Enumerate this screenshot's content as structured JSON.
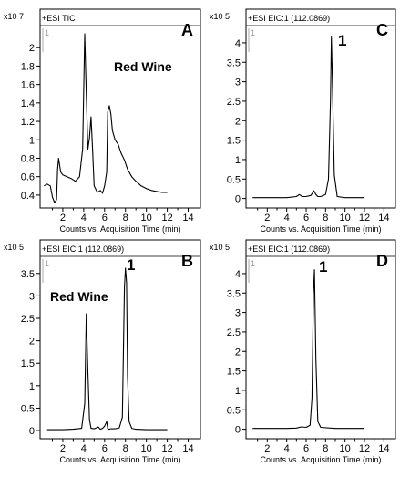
{
  "chart_data": [
    {
      "panel": "A",
      "type": "line",
      "header": "+ESI TIC",
      "scale": "x10 7",
      "annotation": "Red Wine",
      "peak_label": "",
      "xlabel": "Counts vs. Acquisition Time (min)",
      "xlim": [
        0,
        15
      ],
      "ylim": [
        0.3,
        2.2
      ],
      "xticks": [
        1,
        2,
        3,
        4,
        5,
        6,
        7,
        8,
        9,
        10,
        11,
        12,
        13,
        14
      ],
      "xtick_labels": [
        "2",
        "4",
        "6",
        "8",
        "10",
        "12",
        "14"
      ],
      "yticks": [
        0.4,
        0.6,
        0.8,
        1,
        1.2,
        1.4,
        1.6,
        1.8,
        2
      ],
      "ytick_labels": [
        "0.4",
        "0.6",
        "0.8",
        "1",
        "1.2",
        "1.4",
        "1.6",
        "1.8",
        "2"
      ],
      "x": [
        0.2,
        0.5,
        0.8,
        1.0,
        1.2,
        1.4,
        1.5,
        1.6,
        1.8,
        2.0,
        2.4,
        2.8,
        3.2,
        3.6,
        3.9,
        4.1,
        4.25,
        4.4,
        4.55,
        4.7,
        4.85,
        5.0,
        5.3,
        5.6,
        5.8,
        6.0,
        6.2,
        6.3,
        6.45,
        6.6,
        6.75,
        7.0,
        7.3,
        7.6,
        7.9,
        8.2,
        8.6,
        9.0,
        9.5,
        10.0,
        10.5,
        11.0,
        11.5,
        12.0
      ],
      "y": [
        0.5,
        0.52,
        0.5,
        0.38,
        0.32,
        0.35,
        0.68,
        0.8,
        0.65,
        0.62,
        0.6,
        0.58,
        0.55,
        0.6,
        0.9,
        2.15,
        1.5,
        0.9,
        1.02,
        1.25,
        0.9,
        0.5,
        0.43,
        0.45,
        0.42,
        0.5,
        0.65,
        1.3,
        1.37,
        1.28,
        1.1,
        1.0,
        0.95,
        0.85,
        0.78,
        0.68,
        0.6,
        0.55,
        0.5,
        0.47,
        0.45,
        0.44,
        0.43,
        0.43
      ]
    },
    {
      "panel": "B",
      "type": "line",
      "header": "+ESI EIC:1 (112.0869)",
      "scale": "x10 5",
      "annotation": "Red Wine",
      "peak_label": "1",
      "xlabel": "Counts vs. Acquisition Time (min)",
      "xlim": [
        0,
        15
      ],
      "ylim": [
        -0.1,
        3.8
      ],
      "xticks": [
        1,
        2,
        3,
        4,
        5,
        6,
        7,
        8,
        9,
        10,
        11,
        12,
        13,
        14
      ],
      "xtick_labels": [
        "2",
        "4",
        "6",
        "8",
        "10",
        "12",
        "14"
      ],
      "yticks": [
        0,
        0.5,
        1,
        1.5,
        2,
        2.5,
        3,
        3.5
      ],
      "ytick_labels": [
        "0",
        "0.5",
        "1",
        "1.5",
        "2",
        "2.5",
        "3",
        "3.5"
      ],
      "x": [
        0.5,
        2.0,
        3.0,
        3.8,
        4.1,
        4.25,
        4.4,
        4.55,
        4.7,
        5.0,
        5.4,
        5.6,
        5.8,
        6.0,
        6.2,
        6.3,
        6.4,
        6.6,
        7.0,
        7.4,
        7.7,
        7.9,
        8.0,
        8.1,
        8.2,
        8.35,
        8.6,
        9.0,
        10.0,
        11.0,
        12.0
      ],
      "y": [
        0.02,
        0.02,
        0.03,
        0.05,
        0.6,
        2.6,
        1.3,
        0.25,
        0.05,
        0.04,
        0.08,
        0.03,
        0.05,
        0.1,
        0.2,
        0.05,
        0.03,
        0.04,
        0.04,
        0.06,
        0.3,
        3.2,
        3.62,
        3.3,
        1.2,
        0.2,
        0.05,
        0.03,
        0.02,
        0.02,
        0.02
      ]
    },
    {
      "panel": "C",
      "type": "line",
      "header": "+ESI EIC:1 (112.0869)",
      "scale": "x10 5",
      "annotation": "",
      "peak_label": "1",
      "xlabel": "Counts vs. Acquisition Time (min)",
      "xlim": [
        0,
        15
      ],
      "ylim": [
        -0.15,
        4.35
      ],
      "xticks": [
        1,
        2,
        3,
        4,
        5,
        6,
        7,
        8,
        9,
        10,
        11,
        12,
        13,
        14
      ],
      "xtick_labels": [
        "2",
        "4",
        "6",
        "8",
        "10",
        "12",
        "14"
      ],
      "yticks": [
        0,
        0.5,
        1,
        1.5,
        2,
        2.5,
        3,
        3.5,
        4
      ],
      "ytick_labels": [
        "0",
        "0.5",
        "1",
        "1.5",
        "2",
        "2.5",
        "3",
        "3.5",
        "4"
      ],
      "x": [
        0.5,
        2.0,
        4.0,
        5.0,
        5.3,
        5.6,
        6.0,
        6.5,
        6.8,
        7.0,
        7.2,
        7.5,
        8.0,
        8.3,
        8.5,
        8.6,
        8.7,
        8.9,
        9.2,
        10.0,
        12.0
      ],
      "y": [
        0.02,
        0.02,
        0.02,
        0.05,
        0.1,
        0.05,
        0.05,
        0.08,
        0.2,
        0.1,
        0.05,
        0.05,
        0.1,
        0.5,
        2.5,
        4.15,
        3.0,
        0.6,
        0.05,
        0.02,
        0.02
      ]
    },
    {
      "panel": "D",
      "type": "line",
      "header": "+ESI EIC:1 (112.0869)",
      "scale": "x10 5",
      "annotation": "",
      "peak_label": "1",
      "xlabel": "Counts vs. Acquisition Time (min)",
      "xlim": [
        0,
        15
      ],
      "ylim": [
        -0.15,
        4.35
      ],
      "xticks": [
        1,
        2,
        3,
        4,
        5,
        6,
        7,
        8,
        9,
        10,
        11,
        12,
        13,
        14
      ],
      "xtick_labels": [
        "2",
        "4",
        "6",
        "8",
        "10",
        "12",
        "14"
      ],
      "yticks": [
        0,
        0.5,
        1,
        1.5,
        2,
        2.5,
        3,
        3.5,
        4
      ],
      "ytick_labels": [
        "0",
        "0.5",
        "1",
        "1.5",
        "2",
        "2.5",
        "3",
        "3.5",
        "4"
      ],
      "x": [
        0.5,
        2.0,
        4.0,
        5.0,
        5.5,
        6.0,
        6.4,
        6.6,
        6.75,
        6.85,
        7.0,
        7.2,
        7.5,
        9.0,
        12.0
      ],
      "y": [
        0.02,
        0.02,
        0.02,
        0.03,
        0.06,
        0.05,
        0.1,
        0.8,
        3.5,
        4.1,
        1.8,
        0.2,
        0.05,
        0.02,
        0.02
      ]
    }
  ]
}
